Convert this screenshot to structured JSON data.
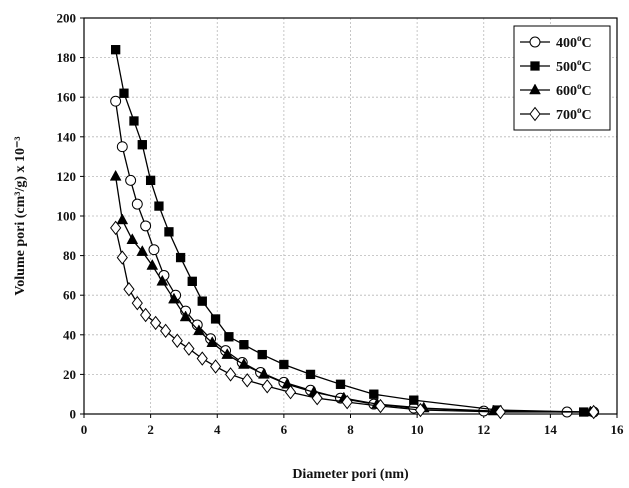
{
  "chart_data": {
    "type": "line",
    "xlabel": "Diameter pori (nm)",
    "ylabel": "Volume pori (cm³/g) x 10⁻³",
    "xlim": [
      0,
      16
    ],
    "ylim": [
      0,
      200
    ],
    "x_ticks": [
      "0",
      "2",
      "4",
      "6",
      "8",
      "10",
      "12",
      "14",
      "16"
    ],
    "y_ticks": [
      "0",
      "20",
      "40",
      "60",
      "80",
      "100",
      "120",
      "140",
      "160",
      "180",
      "200"
    ],
    "grid": true,
    "legend_position": "top-right",
    "series": [
      {
        "name": "400°C",
        "marker": "open-circle",
        "points": [
          [
            0.95,
            158
          ],
          [
            1.15,
            135
          ],
          [
            1.4,
            118
          ],
          [
            1.6,
            106
          ],
          [
            1.85,
            95
          ],
          [
            2.1,
            83
          ],
          [
            2.4,
            70
          ],
          [
            2.75,
            60
          ],
          [
            3.05,
            52
          ],
          [
            3.4,
            45
          ],
          [
            3.8,
            38
          ],
          [
            4.25,
            32
          ],
          [
            4.75,
            26
          ],
          [
            5.3,
            21
          ],
          [
            6.0,
            16
          ],
          [
            6.8,
            12
          ],
          [
            7.7,
            8
          ],
          [
            8.7,
            5
          ],
          [
            9.9,
            3
          ],
          [
            12.0,
            1.5
          ],
          [
            14.5,
            1
          ],
          [
            15.3,
            1
          ]
        ]
      },
      {
        "name": "500°C",
        "marker": "filled-square",
        "points": [
          [
            0.95,
            184
          ],
          [
            1.2,
            162
          ],
          [
            1.5,
            148
          ],
          [
            1.75,
            136
          ],
          [
            2.0,
            118
          ],
          [
            2.25,
            105
          ],
          [
            2.55,
            92
          ],
          [
            2.9,
            79
          ],
          [
            3.25,
            67
          ],
          [
            3.55,
            57
          ],
          [
            3.95,
            48
          ],
          [
            4.35,
            39
          ],
          [
            4.8,
            35
          ],
          [
            5.35,
            30
          ],
          [
            6.0,
            25
          ],
          [
            6.8,
            20
          ],
          [
            7.7,
            15
          ],
          [
            8.7,
            10
          ],
          [
            9.9,
            7
          ],
          [
            12.4,
            2
          ],
          [
            15.0,
            1
          ]
        ]
      },
      {
        "name": "600°C",
        "marker": "filled-triangle",
        "points": [
          [
            0.95,
            120
          ],
          [
            1.15,
            98
          ],
          [
            1.45,
            88
          ],
          [
            1.75,
            82
          ],
          [
            2.05,
            75
          ],
          [
            2.35,
            67
          ],
          [
            2.7,
            58
          ],
          [
            3.05,
            49
          ],
          [
            3.45,
            42
          ],
          [
            3.85,
            36
          ],
          [
            4.3,
            30
          ],
          [
            4.8,
            25
          ],
          [
            5.4,
            20
          ],
          [
            6.1,
            15
          ],
          [
            6.9,
            11
          ],
          [
            7.8,
            8
          ],
          [
            8.8,
            5
          ],
          [
            10.2,
            3
          ],
          [
            12.3,
            1.5
          ],
          [
            15.2,
            1
          ]
        ]
      },
      {
        "name": "700°C",
        "marker": "open-diamond",
        "points": [
          [
            0.95,
            94
          ],
          [
            1.15,
            79
          ],
          [
            1.35,
            63
          ],
          [
            1.6,
            56
          ],
          [
            1.85,
            50
          ],
          [
            2.15,
            46
          ],
          [
            2.45,
            42
          ],
          [
            2.8,
            37
          ],
          [
            3.15,
            33
          ],
          [
            3.55,
            28
          ],
          [
            3.95,
            24
          ],
          [
            4.4,
            20
          ],
          [
            4.9,
            17
          ],
          [
            5.5,
            14
          ],
          [
            6.2,
            11
          ],
          [
            7.0,
            8
          ],
          [
            7.9,
            6
          ],
          [
            8.9,
            4
          ],
          [
            10.1,
            2
          ],
          [
            12.5,
            1
          ],
          [
            15.3,
            1
          ]
        ]
      }
    ]
  }
}
